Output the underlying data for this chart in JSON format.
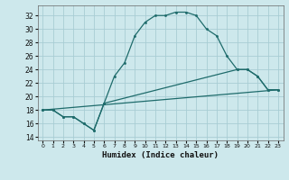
{
  "xlabel": "Humidex (Indice chaleur)",
  "xlim": [
    -0.5,
    23.5
  ],
  "ylim": [
    13.5,
    33.5
  ],
  "yticks": [
    14,
    16,
    18,
    20,
    22,
    24,
    26,
    28,
    30,
    32
  ],
  "xticks": [
    0,
    1,
    2,
    3,
    4,
    5,
    6,
    7,
    8,
    9,
    10,
    11,
    12,
    13,
    14,
    15,
    16,
    17,
    18,
    19,
    20,
    21,
    22,
    23
  ],
  "bg_color": "#cde8ec",
  "grid_color": "#a8cdd4",
  "line_color": "#1e6b6b",
  "series1_x": [
    0,
    1,
    2,
    3,
    4,
    5,
    6,
    7,
    8,
    9,
    10,
    11,
    12,
    13,
    14,
    15,
    16,
    17,
    18,
    19,
    20,
    21,
    22,
    23
  ],
  "series1_y": [
    18,
    18,
    17,
    17,
    16,
    15,
    19,
    23,
    25,
    29,
    31,
    32,
    32,
    32.5,
    32.5,
    32,
    30,
    29,
    26,
    24,
    24,
    23,
    21,
    21
  ],
  "series2_x": [
    0,
    1,
    2,
    3,
    4,
    5,
    6,
    19,
    20,
    21,
    22,
    23
  ],
  "series2_y": [
    18,
    18,
    17,
    17,
    16,
    15,
    19,
    24,
    24,
    23,
    21,
    21
  ],
  "series3_x": [
    0,
    23
  ],
  "series3_y": [
    18,
    21
  ]
}
